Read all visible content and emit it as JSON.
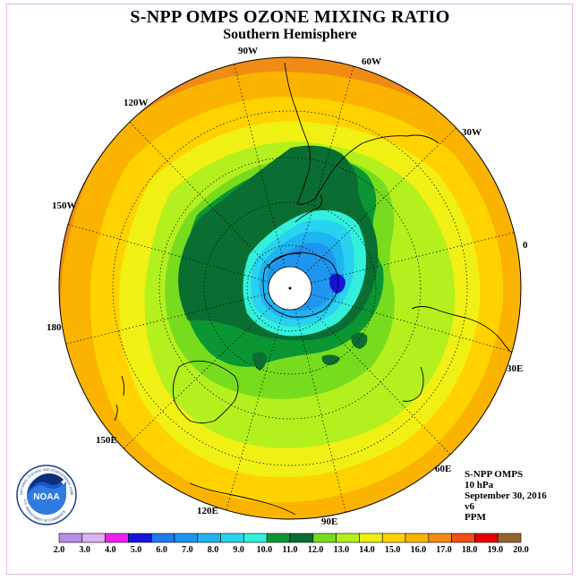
{
  "header": {
    "title": "S-NPP OMPS OZONE MIXING RATIO",
    "subtitle": "Southern Hemisphere"
  },
  "longitude_labels": [
    "90W",
    "60W",
    "30W",
    "0",
    "30E",
    "60E",
    "90E",
    "120E",
    "150E",
    "180",
    "150W",
    "120W"
  ],
  "info": {
    "instrument": "S-NPP OMPS",
    "level": "10 hPa",
    "date": "September 30, 2016",
    "version": "v6",
    "units": "PPM"
  },
  "logo": {
    "text": "NOAA",
    "ring_text": "NATIONAL OCEANIC AND ATMOSPHERIC ADMINISTRATION",
    "ring_text_bottom": "U.S. DEPARTMENT OF COMMERCE"
  },
  "colorbar": {
    "ticks": [
      "2.0",
      "3.0",
      "4.0",
      "5.0",
      "6.0",
      "7.0",
      "8.0",
      "9.0",
      "10.0",
      "11.0",
      "12.0",
      "13.0",
      "14.0",
      "15.0",
      "16.0",
      "17.0",
      "18.0",
      "19.0",
      "20.0"
    ],
    "colors": [
      "#b98ce6",
      "#dcb4f0",
      "#ee22ee",
      "#1414dc",
      "#1e78f0",
      "#1e96f0",
      "#1eb4f0",
      "#28d2f0",
      "#32f0dc",
      "#0a9632",
      "#0a6e32",
      "#78dc1e",
      "#b4f01e",
      "#f0f014",
      "#ffd200",
      "#fab400",
      "#f08c14",
      "#f05014",
      "#e60000",
      "#966432"
    ]
  },
  "map_colors": {
    "c0": "#f08c14",
    "c1": "#fab400",
    "c2": "#ffd200",
    "c3": "#f0f014",
    "c4": "#b4f01e",
    "c5": "#78dc1e",
    "c6": "#0a9632",
    "c7": "#0a6e32",
    "c8": "#32f0dc",
    "c9": "#28d2f0",
    "c10": "#1eb4f0",
    "c11": "#1e96f0",
    "c12": "#1e78f0",
    "c13": "#1414dc",
    "pole": "#ffffff"
  }
}
